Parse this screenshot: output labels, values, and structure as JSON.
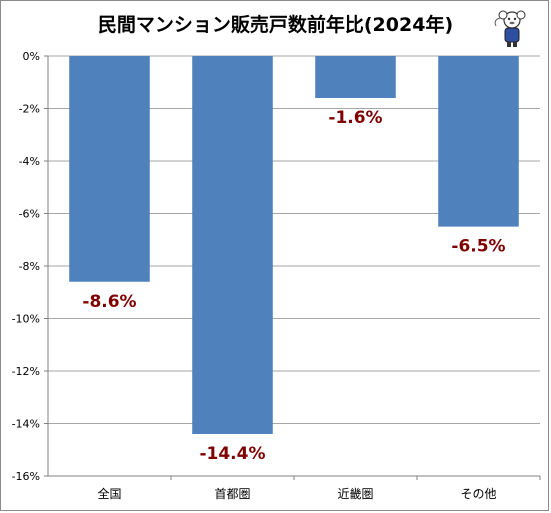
{
  "title": "民間マンション販売戸数前年比(2024年)",
  "logo": {
    "name": "mascot-logo"
  },
  "colors": {
    "bar": "#4f81bd",
    "grid": "#a6a6a6",
    "label": "#7f0000"
  },
  "chart_data": {
    "type": "bar",
    "title": "民間マンション販売戸数前年比(2024年)",
    "categories": [
      "全国",
      "首都圏",
      "近畿圏",
      "その他"
    ],
    "values": [
      -8.6,
      -14.4,
      -1.6,
      -6.5
    ],
    "value_labels": [
      "-8.6%",
      "-14.4%",
      "-1.6%",
      "-6.5%"
    ],
    "ylim": [
      -16,
      0
    ],
    "yticks": [
      0,
      -2,
      -4,
      -6,
      -8,
      -10,
      -12,
      -14,
      -16
    ],
    "ytick_labels": [
      "0%",
      "-2%",
      "-4%",
      "-6%",
      "-8%",
      "-10%",
      "-12%",
      "-14%",
      "-16%"
    ],
    "grid": true,
    "xlabel": "",
    "ylabel": ""
  }
}
